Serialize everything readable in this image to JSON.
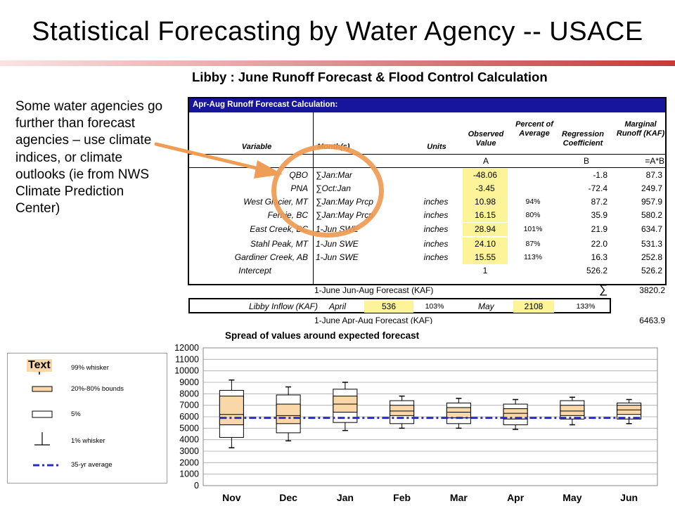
{
  "slide": {
    "title": "Statistical Forecasting by Water Agency -- USACE"
  },
  "callout": {
    "text": "Some water agencies go further than forecast agencies – use climate indices, or climate outlooks (ie from NWS Climate Prediction Center)"
  },
  "figure": {
    "title": "Libby : June Runoff Forecast & Flood Control Calculation",
    "table_header": "Apr-Aug Runoff Forecast Calculation:",
    "columns": {
      "variable": "Variable",
      "months": "Month(s)",
      "units": "Units",
      "observed": "Observed Value",
      "percent": "Percent of Average",
      "coefficient": "Regression Coefficient",
      "marginal": "Marginal Runoff (KAF)"
    },
    "letters": {
      "observed": "A",
      "coefficient": "B",
      "marginal": "=A*B"
    },
    "rows": [
      {
        "variable": "QBO",
        "months": "∑Jan:Mar",
        "units": "",
        "observed": "-48.06",
        "percent": "",
        "coefficient": "-1.8",
        "marginal": "87.3"
      },
      {
        "variable": "PNA",
        "months": "∑Oct:Jan",
        "units": "",
        "observed": "-3.45",
        "percent": "",
        "coefficient": "-72.4",
        "marginal": "249.7"
      },
      {
        "variable": "West Glacier, MT",
        "months": "∑Jan:May Prcp",
        "units": "inches",
        "observed": "10.98",
        "percent": "94%",
        "coefficient": "87.2",
        "marginal": "957.9"
      },
      {
        "variable": "Fernie, BC",
        "months": "∑Jan:May Prcp",
        "units": "inches",
        "observed": "16.15",
        "percent": "80%",
        "coefficient": "35.9",
        "marginal": "580.2"
      },
      {
        "variable": "East Creek, BC",
        "months": "1-Jun SWE",
        "units": "inches",
        "observed": "28.94",
        "percent": "101%",
        "coefficient": "21.9",
        "marginal": "634.7"
      },
      {
        "variable": "Stahl Peak, MT",
        "months": "1-Jun SWE",
        "units": "inches",
        "observed": "24.10",
        "percent": "87%",
        "coefficient": "22.0",
        "marginal": "531.3"
      },
      {
        "variable": "Gardiner Creek, AB",
        "months": "1-Jun SWE",
        "units": "inches",
        "observed": "15.55",
        "percent": "113%",
        "coefficient": "16.3",
        "marginal": "252.8"
      },
      {
        "variable": "Intercept",
        "months": "",
        "units": "",
        "observed": "1",
        "percent": "",
        "coefficient": "526.2",
        "marginal": "526.2"
      }
    ],
    "jun_aug": {
      "label": "1-June Jun-Aug Forecast (KAF)",
      "sigma": "∑",
      "value": "3820.2"
    },
    "inflow": {
      "label": "Libby Inflow (KAF)",
      "april_label": "April",
      "april_value": "536",
      "april_pct": "103%",
      "may_label": "May",
      "may_value": "2108",
      "may_pct": "133%"
    },
    "apr_aug": {
      "label": "1-June Apr-Aug Forecast (KAF)",
      "value": "6463.9"
    }
  },
  "legend": {
    "sample_text": "Text",
    "items": [
      "99% whisker",
      "20%-80% bounds",
      "5%",
      "1% whisker",
      "35-yr average"
    ],
    "colors": {
      "box_fill": "#fad7a8",
      "average_line": "#2a2adb"
    }
  },
  "chart_data": {
    "type": "box",
    "title": "Spread of values around expected forecast",
    "categories": [
      "Nov",
      "Dec",
      "Jan",
      "Feb",
      "Mar",
      "Apr",
      "May",
      "Jun"
    ],
    "y_ticks": [
      "0",
      "1000",
      "2000",
      "3000",
      "4000",
      "5000",
      "6000",
      "7000",
      "8000",
      "9000",
      "10000",
      "11000",
      "12000"
    ],
    "ylim": [
      0,
      12000
    ],
    "grid": true,
    "boxes": [
      {
        "month": "Nov",
        "whisker_low": 3300,
        "p5": 4200,
        "p20": 5300,
        "median": 6200,
        "p80": 7800,
        "p95": 8300,
        "whisker_high": 9200
      },
      {
        "month": "Dec",
        "whisker_low": 3900,
        "p5": 4600,
        "p20": 5400,
        "median": 6100,
        "p80": 7100,
        "p95": 7900,
        "whisker_high": 8600
      },
      {
        "month": "Jan",
        "whisker_low": 4800,
        "p5": 5500,
        "p20": 6400,
        "median": 7100,
        "p80": 7800,
        "p95": 8400,
        "whisker_high": 9000
      },
      {
        "month": "Feb",
        "whisker_low": 5000,
        "p5": 5400,
        "p20": 6100,
        "median": 6500,
        "p80": 7000,
        "p95": 7400,
        "whisker_high": 7800
      },
      {
        "month": "Mar",
        "whisker_low": 5000,
        "p5": 5400,
        "p20": 5900,
        "median": 6400,
        "p80": 6800,
        "p95": 7200,
        "whisker_high": 7600
      },
      {
        "month": "Apr",
        "whisker_low": 4900,
        "p5": 5300,
        "p20": 5800,
        "median": 6300,
        "p80": 6700,
        "p95": 7100,
        "whisker_high": 7500
      },
      {
        "month": "May",
        "whisker_low": 5300,
        "p5": 5800,
        "p20": 6100,
        "median": 6500,
        "p80": 7000,
        "p95": 7400,
        "whisker_high": 7700
      },
      {
        "month": "Jun",
        "whisker_low": 5400,
        "p5": 5800,
        "p20": 6200,
        "median": 6600,
        "p80": 7000,
        "p95": 7200,
        "whisker_high": 7500
      }
    ],
    "average": 5900,
    "colors": {
      "box_fill": "#fad7a8",
      "average_line": "#2a2adb",
      "grid": "#a8a8a8"
    }
  }
}
